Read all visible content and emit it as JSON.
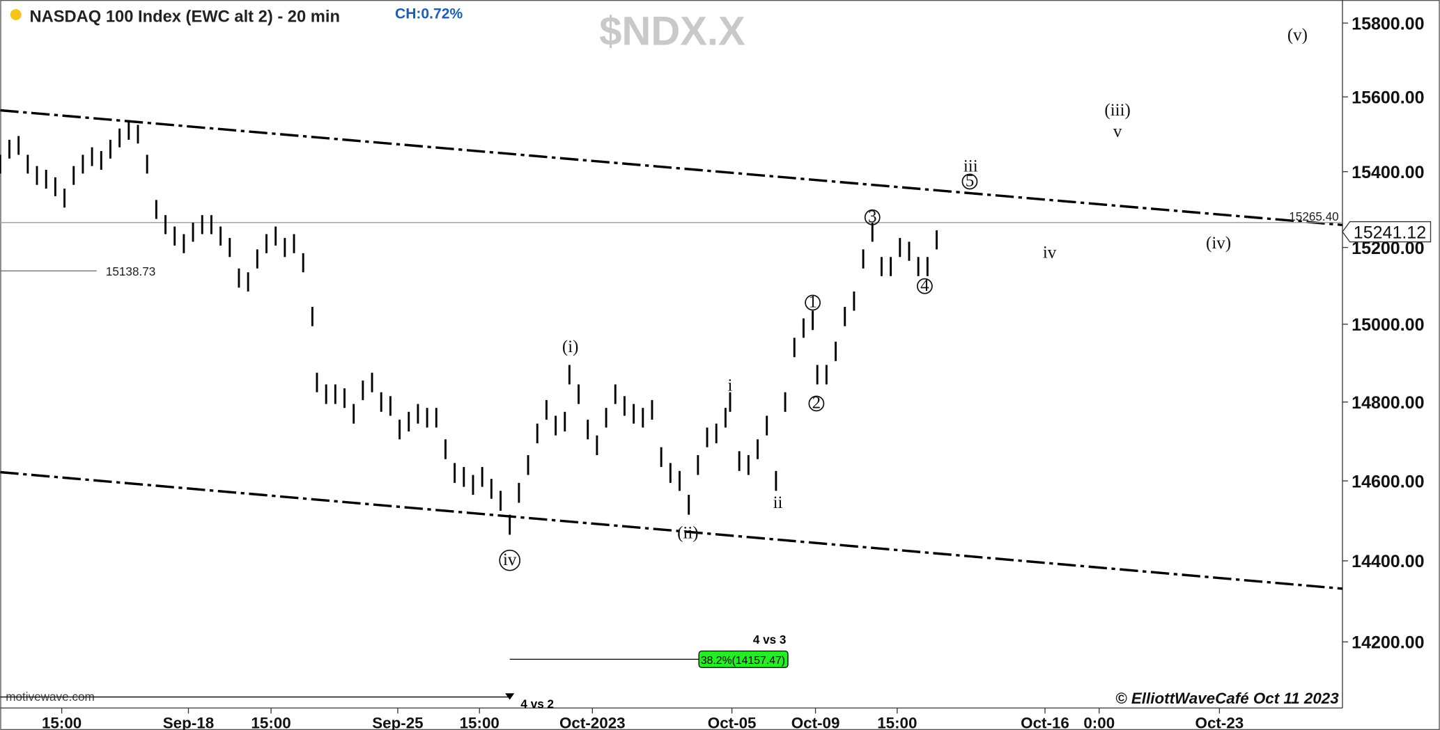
{
  "chart_data": {
    "type": "ohlc",
    "title": "NASDAQ 100 Index (EWC alt 2) - 20 min",
    "change": "CH:0.72%",
    "symbol": "$NDX.X",
    "watermark": "motivewave.com",
    "copyright": "© ElliottWaveCafé Oct 11  2023",
    "color": "#000000",
    "log_y": true,
    "ylim": [
      14039,
      15863
    ],
    "yticks": [
      {
        "value": 14200,
        "label": "14200.00"
      },
      {
        "value": 14400,
        "label": "14400.00"
      },
      {
        "value": 14600,
        "label": "14600.00"
      },
      {
        "value": 14800,
        "label": "14800.00"
      },
      {
        "value": 15000,
        "label": "15000.00"
      },
      {
        "value": 15200,
        "label": "15200.00"
      },
      {
        "value": 15400,
        "label": "15400.00"
      },
      {
        "value": 15600,
        "label": "15600.00"
      },
      {
        "value": 15800,
        "label": "15800.00"
      }
    ],
    "xlim": [
      0,
      1462
    ],
    "xticks": [
      {
        "value": 67,
        "label": "15:00"
      },
      {
        "value": 205,
        "label": "Sep-18"
      },
      {
        "value": 295,
        "label": "15:00"
      },
      {
        "value": 433,
        "label": "Sep-25"
      },
      {
        "value": 522,
        "label": "15:00"
      },
      {
        "value": 645,
        "label": "Oct-2023"
      },
      {
        "value": 797,
        "label": "Oct-05"
      },
      {
        "value": 888,
        "label": "Oct-09"
      },
      {
        "value": 977,
        "label": "15:00"
      },
      {
        "value": 1138,
        "label": "Oct-16"
      },
      {
        "value": 1197,
        "label": "0:00"
      },
      {
        "value": 1328,
        "label": "Oct-23"
      }
    ],
    "x": [
      0,
      10,
      20,
      30,
      40,
      50,
      60,
      70,
      80,
      90,
      100,
      110,
      120,
      130,
      140,
      150,
      160,
      170,
      180,
      190,
      200,
      210,
      220,
      230,
      240,
      250,
      260,
      270,
      280,
      290,
      300,
      310,
      320,
      330,
      340,
      345,
      355,
      365,
      375,
      385,
      395,
      405,
      415,
      425,
      435,
      445,
      455,
      465,
      475,
      485,
      495,
      505,
      515,
      525,
      535,
      545,
      555,
      565,
      575,
      585,
      595,
      605,
      615,
      620,
      630,
      640,
      650,
      660,
      670,
      680,
      690,
      700,
      710,
      720,
      730,
      740,
      750,
      760,
      770,
      780,
      790,
      795,
      805,
      815,
      825,
      835,
      845,
      855,
      865,
      875,
      885,
      890,
      900,
      910,
      920,
      930,
      940,
      950,
      960,
      970,
      980,
      990,
      1000,
      1010,
      1020
    ],
    "high": [
      15445,
      15485,
      15495,
      15445,
      15415,
      15405,
      15385,
      15355,
      15415,
      15445,
      15465,
      15455,
      15485,
      15515,
      15535,
      15525,
      15445,
      15325,
      15285,
      15255,
      15235,
      15265,
      15285,
      15285,
      15255,
      15225,
      15145,
      15135,
      15195,
      15235,
      15255,
      15225,
      15235,
      15185,
      15045,
      14875,
      14845,
      14845,
      14835,
      14795,
      14855,
      14875,
      14825,
      14815,
      14755,
      14775,
      14795,
      14785,
      14785,
      14705,
      14645,
      14635,
      14615,
      14635,
      14605,
      14575,
      14515,
      14595,
      14665,
      14745,
      14805,
      14765,
      14775,
      14895,
      14845,
      14755,
      14715,
      14785,
      14845,
      14815,
      14795,
      14785,
      14805,
      14685,
      14645,
      14625,
      14565,
      14665,
      14735,
      14745,
      14785,
      14825,
      14675,
      14665,
      14705,
      14765,
      14625,
      14825,
      14965,
      15015,
      15035,
      14895,
      14895,
      14955,
      15045,
      15085,
      15195,
      15265,
      15175,
      15175,
      15225,
      15215,
      15175,
      15175,
      15245
    ],
    "low": [
      15395,
      15435,
      15445,
      15395,
      15365,
      15355,
      15335,
      15305,
      15365,
      15395,
      15415,
      15405,
      15435,
      15465,
      15485,
      15475,
      15395,
      15275,
      15235,
      15205,
      15185,
      15215,
      15235,
      15235,
      15205,
      15175,
      15095,
      15085,
      15145,
      15185,
      15205,
      15175,
      15185,
      15135,
      14995,
      14825,
      14795,
      14795,
      14785,
      14745,
      14805,
      14825,
      14775,
      14765,
      14705,
      14725,
      14745,
      14735,
      14735,
      14655,
      14595,
      14585,
      14565,
      14585,
      14555,
      14525,
      14465,
      14545,
      14615,
      14695,
      14755,
      14715,
      14725,
      14845,
      14795,
      14705,
      14665,
      14735,
      14795,
      14765,
      14745,
      14735,
      14755,
      14635,
      14595,
      14575,
      14515,
      14615,
      14685,
      14695,
      14735,
      14775,
      14625,
      14615,
      14655,
      14715,
      14575,
      14775,
      14915,
      14965,
      14985,
      14845,
      14845,
      14905,
      14995,
      15035,
      15145,
      15215,
      15125,
      15125,
      15175,
      15165,
      15125,
      15125,
      15195
    ],
    "last_price": 15241.12,
    "levels": [
      {
        "value": 15265.4,
        "label": "15265.40"
      },
      {
        "value": 15138.73,
        "label": "15138.73"
      }
    ],
    "fib": {
      "title": "4 vs 3",
      "value": 14157.47,
      "label": "38.2%(14157.47)",
      "color": "#22ee22"
    },
    "note": "4 vs 2",
    "trendlines": [
      {
        "x": [
          0,
          1462
        ],
        "y": [
          15564,
          15259
        ]
      },
      {
        "x": [
          0,
          1462
        ],
        "y": [
          14622,
          14331
        ]
      }
    ],
    "wave_labels": [
      "(v)",
      "(iii)",
      "v",
      "iii",
      "5",
      "3",
      "iv",
      "(iv)",
      "4",
      "1",
      "(i)",
      "i",
      "2",
      "ii",
      "(ii)",
      "iv"
    ]
  }
}
